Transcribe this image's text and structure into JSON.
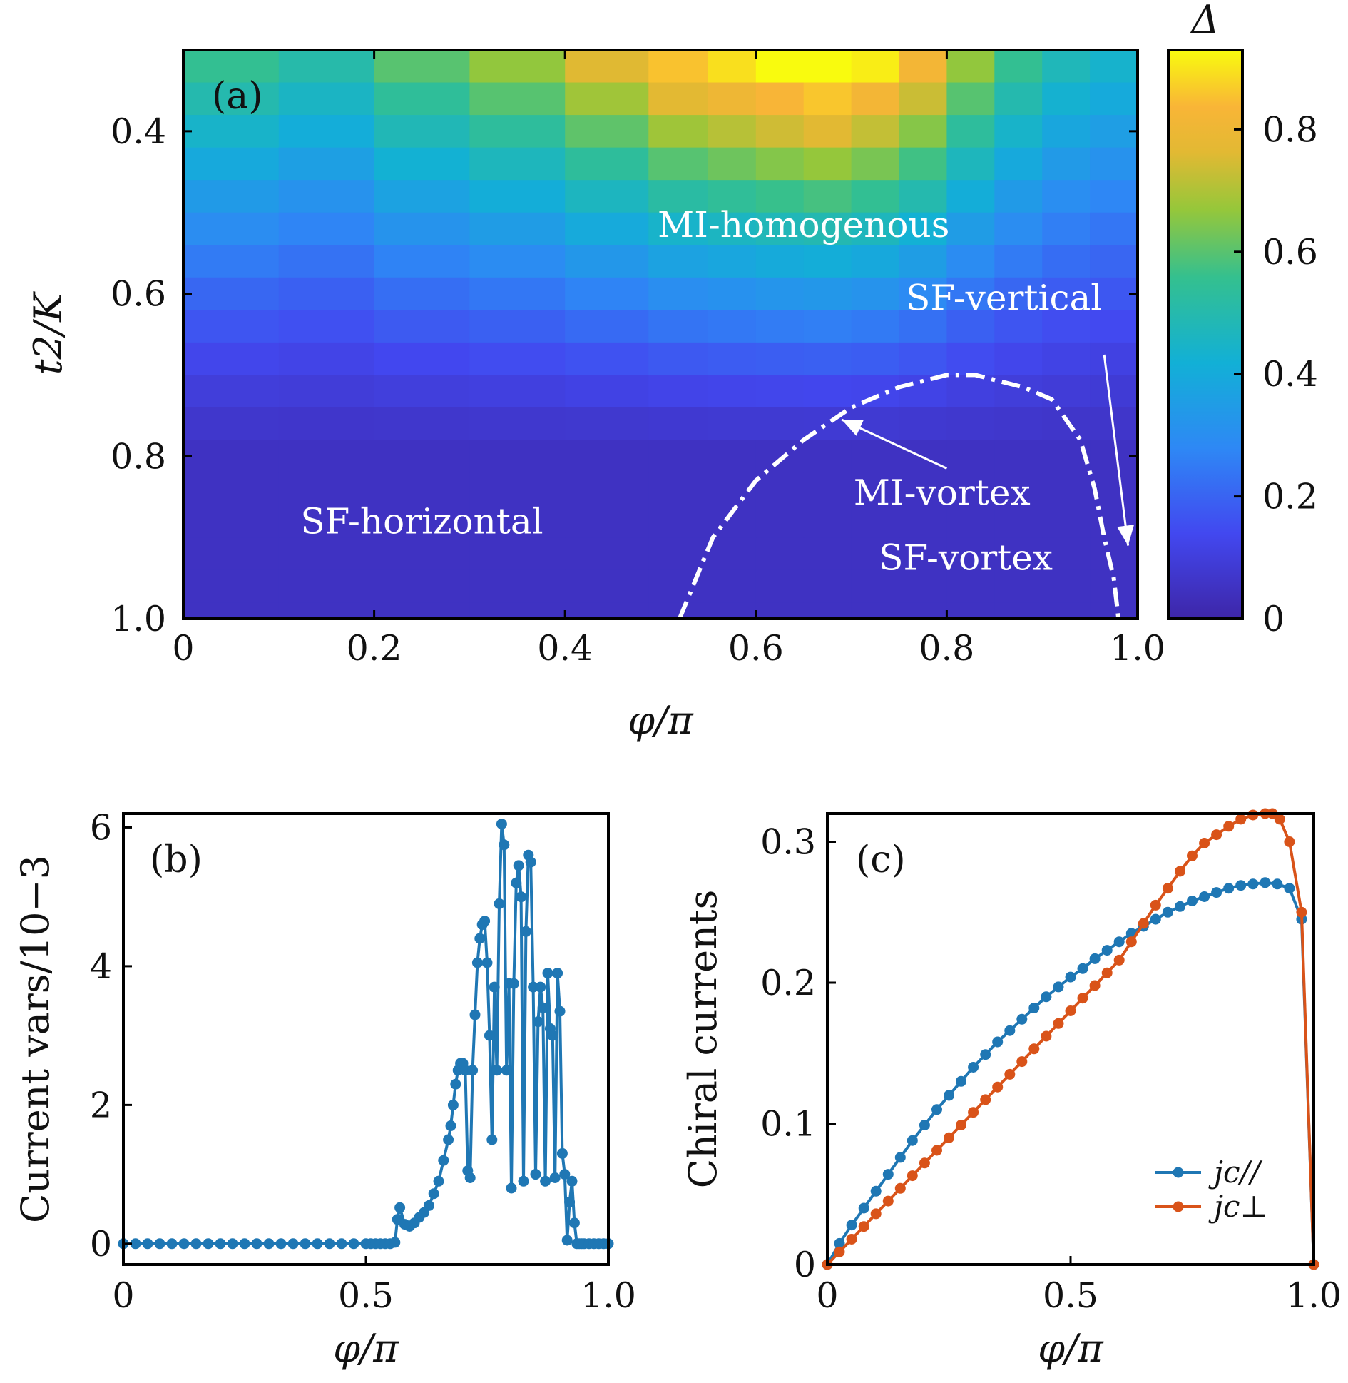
{
  "colors": {
    "blue_series": "#1f77b4",
    "orange_series": "#d95319",
    "annotation": "#ffffff",
    "axis": "#000000"
  },
  "chart_data": [
    {
      "panel": "(a)",
      "type": "heatmap",
      "xlabel": "φ/π",
      "ylabel": "t2/K",
      "xlim": [
        0,
        1.0
      ],
      "ylim": [
        0.3,
        1.0
      ],
      "y_inverted": true,
      "x_ticks": [
        "0",
        "0.2",
        "0.4",
        "0.6",
        "0.8",
        "1.0"
      ],
      "y_ticks": [
        "0.4",
        "0.6",
        "0.8",
        "1.0"
      ],
      "colorbar": {
        "label": "Δ",
        "range": [
          0,
          0.93
        ],
        "ticks": [
          "0",
          "0.2",
          "0.4",
          "0.6",
          "0.8"
        ]
      },
      "x_columns": [
        0.05,
        0.15,
        0.25,
        0.35,
        0.45,
        0.525,
        0.575,
        0.625,
        0.675,
        0.725,
        0.775,
        0.825,
        0.875,
        0.925,
        0.975
      ],
      "y_rows": [
        0.32,
        0.36,
        0.4,
        0.44,
        0.48,
        0.52,
        0.56,
        0.6,
        0.64,
        0.68,
        0.72,
        0.76,
        0.8,
        0.84,
        0.88,
        0.92,
        0.96,
        1.0
      ],
      "peak_profile": [
        0.5,
        0.45,
        0.55,
        0.62,
        0.72,
        0.82,
        0.86,
        0.9,
        0.93,
        0.88,
        0.78,
        0.62,
        0.5,
        0.42,
        0.38
      ],
      "regions": [
        {
          "label": "MI-homogenous",
          "phi": 0.65,
          "t2": 0.53
        },
        {
          "label": "SF-vertical",
          "phi": 0.86,
          "t2": 0.62
        },
        {
          "label": "MI-vortex",
          "phi": 0.795,
          "t2": 0.86
        },
        {
          "label": "SF-vortex",
          "phi": 0.82,
          "t2": 0.94
        },
        {
          "label": "SF-horizontal",
          "phi": 0.25,
          "t2": 0.895
        }
      ],
      "boundary": {
        "phi": [
          0.52,
          0.555,
          0.6,
          0.65,
          0.7,
          0.75,
          0.8,
          0.83,
          0.88,
          0.91,
          0.94,
          0.955,
          0.965,
          0.975,
          0.98
        ],
        "t2": [
          1.0,
          0.9,
          0.83,
          0.78,
          0.74,
          0.715,
          0.7,
          0.7,
          0.715,
          0.73,
          0.78,
          0.84,
          0.9,
          0.95,
          1.0
        ]
      },
      "arrows": [
        {
          "from": [
            0.8,
            0.815
          ],
          "to": [
            0.69,
            0.755
          ]
        },
        {
          "from": [
            0.965,
            0.675
          ],
          "to": [
            0.99,
            0.91
          ]
        }
      ]
    },
    {
      "panel": "(b)",
      "type": "line",
      "xlabel": "φ/π",
      "ylabel": "Current vars/10−3",
      "xlim": [
        0,
        1.0
      ],
      "ylim": [
        -0.3,
        6.2
      ],
      "x_ticks": [
        "0",
        "0.5",
        "1.0"
      ],
      "y_ticks": [
        "0",
        "2",
        "4",
        "6"
      ],
      "series": [
        {
          "x": [
            0.0,
            0.025,
            0.05,
            0.075,
            0.1,
            0.125,
            0.15,
            0.175,
            0.2,
            0.225,
            0.25,
            0.275,
            0.3,
            0.325,
            0.35,
            0.375,
            0.4,
            0.425,
            0.45,
            0.475,
            0.5,
            0.51,
            0.52,
            0.53,
            0.54,
            0.55,
            0.56,
            0.565,
            0.57,
            0.58,
            0.59,
            0.6,
            0.61,
            0.62,
            0.63,
            0.64,
            0.65,
            0.66,
            0.67,
            0.675,
            0.68,
            0.685,
            0.69,
            0.695,
            0.7,
            0.705,
            0.71,
            0.715,
            0.72,
            0.725,
            0.73,
            0.735,
            0.74,
            0.745,
            0.75,
            0.755,
            0.76,
            0.765,
            0.77,
            0.775,
            0.78,
            0.785,
            0.79,
            0.795,
            0.8,
            0.805,
            0.81,
            0.815,
            0.82,
            0.825,
            0.83,
            0.835,
            0.84,
            0.845,
            0.85,
            0.855,
            0.86,
            0.865,
            0.87,
            0.875,
            0.88,
            0.885,
            0.89,
            0.895,
            0.9,
            0.905,
            0.91,
            0.915,
            0.92,
            0.925,
            0.93,
            0.935,
            0.94,
            0.945,
            0.95,
            0.96,
            0.97,
            0.98,
            0.99,
            1.0
          ],
          "values": [
            0,
            0,
            0,
            0,
            0,
            0,
            0,
            0,
            0,
            0,
            0,
            0,
            0,
            0,
            0,
            0,
            0,
            0,
            0,
            0,
            0,
            0,
            0,
            0,
            0,
            0,
            0.02,
            0.35,
            0.52,
            0.28,
            0.25,
            0.3,
            0.38,
            0.45,
            0.55,
            0.72,
            0.9,
            1.2,
            1.5,
            1.7,
            2.0,
            2.3,
            2.5,
            2.6,
            2.6,
            2.5,
            1.05,
            0.95,
            2.5,
            3.3,
            4.05,
            4.4,
            4.6,
            4.65,
            4.05,
            3.0,
            1.5,
            3.7,
            2.5,
            4.9,
            6.05,
            5.75,
            2.5,
            3.75,
            0.8,
            3.75,
            5.2,
            5.45,
            5.0,
            0.9,
            4.5,
            5.6,
            5.5,
            3.7,
            1.0,
            3.2,
            3.7,
            3.4,
            0.9,
            3.9,
            3.1,
            3.0,
            0.95,
            3.9,
            3.35,
            1.3,
            1.0,
            0.05,
            0.6,
            0.9,
            0.3,
            0.0,
            0.0,
            0,
            0,
            0,
            0,
            0,
            0,
            0
          ]
        }
      ]
    },
    {
      "panel": "(c)",
      "type": "line",
      "xlabel": "φ/π",
      "ylabel": "Chiral currents",
      "xlim": [
        0,
        1.0
      ],
      "ylim": [
        0,
        0.32
      ],
      "x_ticks": [
        "0",
        "0.5",
        "1.0"
      ],
      "y_ticks": [
        "0",
        "0.1",
        "0.2",
        "0.3"
      ],
      "legend_position": "lower-right",
      "series": [
        {
          "name": "jc//",
          "x": [
            0,
            0.025,
            0.05,
            0.075,
            0.1,
            0.125,
            0.15,
            0.175,
            0.2,
            0.225,
            0.25,
            0.275,
            0.3,
            0.325,
            0.35,
            0.375,
            0.4,
            0.425,
            0.45,
            0.475,
            0.5,
            0.525,
            0.55,
            0.575,
            0.6,
            0.625,
            0.65,
            0.675,
            0.7,
            0.725,
            0.75,
            0.775,
            0.8,
            0.825,
            0.85,
            0.875,
            0.9,
            0.925,
            0.95,
            0.975,
            1.0
          ],
          "values": [
            0,
            0.015,
            0.028,
            0.04,
            0.052,
            0.064,
            0.076,
            0.088,
            0.099,
            0.11,
            0.12,
            0.13,
            0.14,
            0.149,
            0.158,
            0.166,
            0.174,
            0.182,
            0.19,
            0.197,
            0.204,
            0.21,
            0.217,
            0.223,
            0.229,
            0.235,
            0.24,
            0.245,
            0.25,
            0.254,
            0.258,
            0.261,
            0.264,
            0.267,
            0.269,
            0.27,
            0.271,
            0.27,
            0.267,
            0.245,
            0
          ]
        },
        {
          "name": "jc⊥",
          "x": [
            0,
            0.025,
            0.05,
            0.075,
            0.1,
            0.125,
            0.15,
            0.175,
            0.2,
            0.225,
            0.25,
            0.275,
            0.3,
            0.325,
            0.35,
            0.375,
            0.4,
            0.425,
            0.45,
            0.475,
            0.5,
            0.525,
            0.55,
            0.575,
            0.6,
            0.625,
            0.65,
            0.675,
            0.7,
            0.725,
            0.75,
            0.775,
            0.8,
            0.825,
            0.85,
            0.875,
            0.9,
            0.915,
            0.93,
            0.95,
            0.975,
            1.0
          ],
          "values": [
            0,
            0.009,
            0.018,
            0.027,
            0.036,
            0.045,
            0.054,
            0.063,
            0.072,
            0.081,
            0.09,
            0.099,
            0.108,
            0.117,
            0.126,
            0.135,
            0.144,
            0.153,
            0.162,
            0.171,
            0.18,
            0.189,
            0.198,
            0.207,
            0.216,
            0.229,
            0.242,
            0.255,
            0.267,
            0.279,
            0.29,
            0.299,
            0.305,
            0.311,
            0.316,
            0.319,
            0.32,
            0.32,
            0.316,
            0.3,
            0.25,
            0
          ]
        }
      ]
    }
  ]
}
